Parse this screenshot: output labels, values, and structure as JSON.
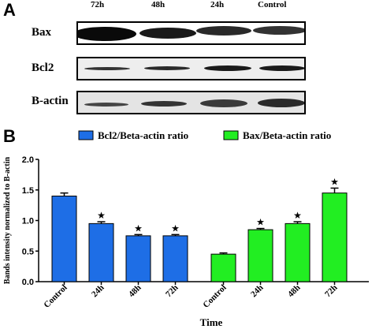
{
  "panel_a": {
    "letter": "A",
    "lanes": [
      "72h",
      "48h",
      "24h",
      "Control"
    ],
    "rows": [
      "Bax",
      "Bcl2",
      "B-actin"
    ]
  },
  "panel_b": {
    "letter": "B"
  },
  "colors": {
    "blue": "#1e6ee6",
    "green": "#22ee22"
  },
  "chart_data": {
    "type": "bar",
    "xlabel": "Time",
    "ylabel": "Bands intensity normalized to B-actin",
    "ylim": [
      0,
      2.0
    ],
    "yticks": [
      "0.0",
      "0.5",
      "1.0",
      "1.5",
      "2.0"
    ],
    "grid": false,
    "legend_position": "top",
    "significance_marker": "★",
    "series": [
      {
        "name": "Bcl2/Beta-actin ratio",
        "color": "#1e6ee6",
        "categories": [
          "Control",
          "24h",
          "48h",
          "72h"
        ],
        "values": [
          1.4,
          0.95,
          0.75,
          0.75
        ],
        "errors": [
          0.05,
          0.03,
          0.02,
          0.02
        ],
        "significant": [
          false,
          true,
          true,
          true
        ]
      },
      {
        "name": "Bax/Beta-actin ratio",
        "color": "#22ee22",
        "categories": [
          "Control",
          "24h",
          "48h",
          "72h"
        ],
        "values": [
          0.45,
          0.85,
          0.95,
          1.45
        ],
        "errors": [
          0.02,
          0.02,
          0.03,
          0.08
        ],
        "significant": [
          false,
          true,
          true,
          true
        ]
      }
    ]
  }
}
